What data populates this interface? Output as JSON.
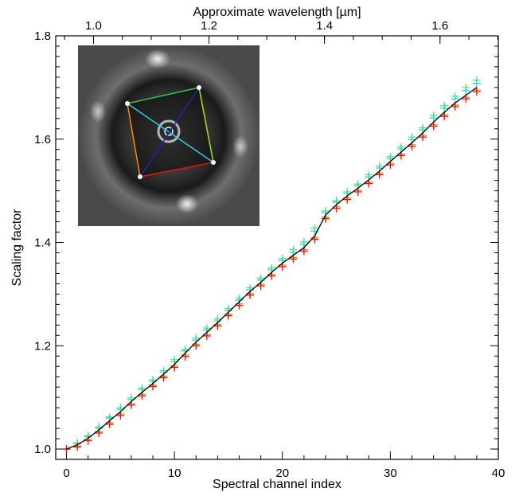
{
  "chart_data": {
    "type": "scatter",
    "title": "",
    "xlabel": "Spectral channel index",
    "ylabel": "Scaling factor",
    "top_xlabel": "Approximate wavelength [µm]",
    "xlim": [
      -1,
      40
    ],
    "ylim": [
      0.98,
      1.8
    ],
    "xticks": [
      0,
      10,
      20,
      30,
      40
    ],
    "yticks": [
      1.0,
      1.2,
      1.4,
      1.6,
      1.8
    ],
    "xtick_labels": [
      "0",
      "10",
      "20",
      "30",
      "40"
    ],
    "ytick_labels": [
      "1.0",
      "1.2",
      "1.4",
      "1.6",
      "1.8"
    ],
    "top_ticks": [
      {
        "label": "1.0",
        "channel": 2.5
      },
      {
        "label": "1.2",
        "channel": 13.2
      },
      {
        "label": "1.4",
        "channel": 23.9
      },
      {
        "label": "1.6",
        "channel": 34.6
      }
    ],
    "grid": false,
    "x": [
      0,
      1,
      2,
      3,
      4,
      5,
      6,
      7,
      8,
      9,
      10,
      11,
      12,
      13,
      14,
      15,
      16,
      17,
      18,
      19,
      20,
      21,
      22,
      23,
      24,
      25,
      26,
      27,
      28,
      29,
      30,
      31,
      32,
      33,
      34,
      35,
      36,
      37,
      38
    ],
    "series": [
      {
        "marker": "line",
        "color": "#000000",
        "values": [
          1.0,
          1.008,
          1.021,
          1.037,
          1.055,
          1.072,
          1.092,
          1.11,
          1.127,
          1.145,
          1.164,
          1.186,
          1.207,
          1.226,
          1.245,
          1.265,
          1.285,
          1.305,
          1.323,
          1.342,
          1.36,
          1.375,
          1.39,
          1.413,
          1.453,
          1.473,
          1.49,
          1.505,
          1.521,
          1.538,
          1.557,
          1.575,
          1.593,
          1.612,
          1.633,
          1.652,
          1.67,
          1.685,
          1.7
        ]
      },
      {
        "marker": "plus",
        "color": "#33ff66",
        "values": [
          1.0,
          1.012,
          1.026,
          1.043,
          1.062,
          1.08,
          1.099,
          1.118,
          1.134,
          1.152,
          1.173,
          1.193,
          1.215,
          1.234,
          1.252,
          1.272,
          1.292,
          1.312,
          1.331,
          1.351,
          1.369,
          1.386,
          1.401,
          1.428,
          1.461,
          1.481,
          1.498,
          1.513,
          1.531,
          1.548,
          1.566,
          1.585,
          1.604,
          1.622,
          1.646,
          1.665,
          1.683,
          1.7,
          1.714
        ]
      },
      {
        "marker": "plus",
        "color": "#33ccdd",
        "values": [
          1.0,
          1.01,
          1.024,
          1.04,
          1.06,
          1.077,
          1.096,
          1.115,
          1.131,
          1.149,
          1.169,
          1.19,
          1.211,
          1.23,
          1.248,
          1.268,
          1.288,
          1.308,
          1.327,
          1.347,
          1.365,
          1.381,
          1.396,
          1.422,
          1.458,
          1.478,
          1.495,
          1.51,
          1.527,
          1.544,
          1.562,
          1.581,
          1.599,
          1.618,
          1.641,
          1.66,
          1.678,
          1.694,
          1.708
        ]
      },
      {
        "marker": "plus",
        "color": "#ff8800",
        "values": [
          1.0,
          1.006,
          1.019,
          1.034,
          1.051,
          1.068,
          1.088,
          1.106,
          1.124,
          1.141,
          1.161,
          1.182,
          1.203,
          1.222,
          1.241,
          1.261,
          1.281,
          1.301,
          1.319,
          1.338,
          1.356,
          1.371,
          1.386,
          1.409,
          1.449,
          1.469,
          1.486,
          1.501,
          1.517,
          1.534,
          1.553,
          1.571,
          1.589,
          1.607,
          1.628,
          1.647,
          1.666,
          1.681,
          1.695
        ]
      },
      {
        "marker": "plus",
        "color": "#ee1111",
        "values": [
          1.0,
          1.004,
          1.016,
          1.031,
          1.048,
          1.065,
          1.085,
          1.103,
          1.121,
          1.138,
          1.158,
          1.179,
          1.2,
          1.219,
          1.238,
          1.258,
          1.278,
          1.298,
          1.316,
          1.335,
          1.353,
          1.368,
          1.383,
          1.406,
          1.446,
          1.466,
          1.483,
          1.498,
          1.514,
          1.531,
          1.55,
          1.568,
          1.586,
          1.604,
          1.625,
          1.644,
          1.663,
          1.678,
          1.692
        ]
      }
    ],
    "inset": {
      "type": "image",
      "description_colors": [
        "#2ecc40",
        "#aadd22",
        "#ee1111",
        "#ff8800",
        "#33ccdd",
        "#2222aa"
      ]
    }
  }
}
